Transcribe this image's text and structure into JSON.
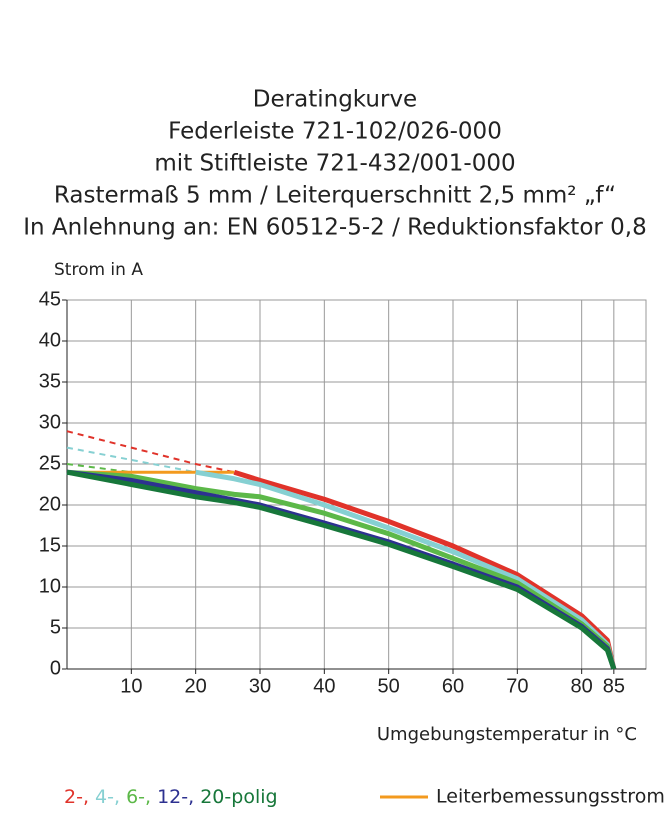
{
  "chart_data": {
    "type": "line",
    "title": [
      "Deratingkurve",
      "Federleiste 721-102/026-000",
      "mit Stiftleiste 721-432/001-000",
      "Rastermaß 5 mm / Leiterquerschnitt 2,5 mm² „f“",
      "In Anlehnung an: EN 60512-5-2 / Reduktionsfaktor 0,8"
    ],
    "y_label": "Strom in A",
    "x_label": "Umgebungstemperatur in °C",
    "x": [
      0,
      10,
      20,
      26,
      30,
      40,
      50,
      60,
      70,
      80,
      84,
      85
    ],
    "xlim": [
      0,
      90
    ],
    "xticks": [
      10,
      20,
      30,
      40,
      50,
      60,
      70,
      80,
      85
    ],
    "ylim": [
      0,
      45
    ],
    "yticks": [
      0,
      5,
      10,
      15,
      20,
      25,
      30,
      35,
      40,
      45
    ],
    "grid": true,
    "legend_suffix": "polig",
    "series": [
      {
        "name": "2-,",
        "color": "#e0332a",
        "values": [
          null,
          null,
          null,
          24,
          23,
          20.7,
          18,
          15,
          11.5,
          6.5,
          3.5,
          0
        ],
        "dashed_values": [
          29,
          27,
          25,
          24,
          null,
          null,
          null,
          null,
          null,
          null,
          null,
          null
        ]
      },
      {
        "name": "4-,",
        "color": "#86d0d2",
        "values": [
          null,
          null,
          24,
          23.2,
          22.5,
          20,
          17.2,
          14.3,
          11,
          6,
          3,
          0
        ],
        "dashed_values": [
          27,
          25.5,
          24,
          null,
          null,
          null,
          null,
          null,
          null,
          null,
          null,
          null
        ]
      },
      {
        "name": "6-,",
        "color": "#5cb848",
        "values": [
          24,
          23.5,
          22,
          21.3,
          21,
          19,
          16.5,
          13.5,
          10.5,
          5.5,
          2.8,
          0
        ],
        "dashed_values": [
          25,
          24,
          null,
          null,
          null,
          null,
          null,
          null,
          null,
          null,
          null,
          null
        ]
      },
      {
        "name": "12-,",
        "color": "#2d3190",
        "values": [
          24,
          23,
          21.5,
          20.6,
          20,
          17.8,
          15.5,
          12.8,
          10,
          5.2,
          2.5,
          0
        ]
      },
      {
        "name": "20-",
        "color": "#17773a",
        "values": [
          24,
          22.5,
          21,
          20.3,
          19.7,
          17.5,
          15.2,
          12.5,
          9.7,
          5,
          2.3,
          0
        ]
      },
      {
        "name": "Leiterbemessungsstrom",
        "color": "#f39a1e",
        "values": [
          24,
          24,
          24,
          24,
          null,
          null,
          null,
          null,
          null,
          null,
          null,
          null
        ]
      }
    ]
  }
}
